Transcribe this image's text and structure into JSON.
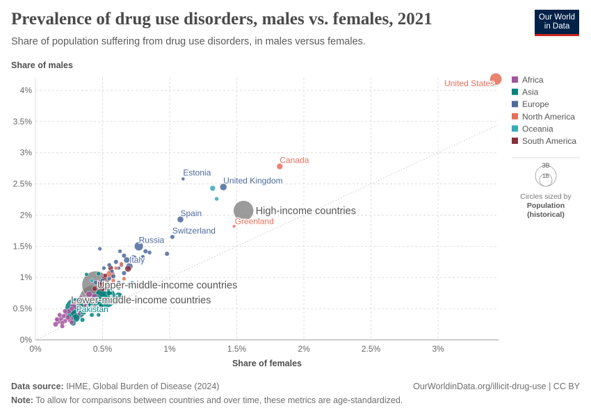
{
  "header": {
    "title": "Prevalence of drug use disorders, males vs. females, 2021",
    "subtitle": "Share of population suffering from drug use disorders, in males versus females.",
    "logo_line1": "Our World",
    "logo_line2": "in Data"
  },
  "footer": {
    "source_label": "Data source:",
    "source_text": "IHME, Global Burden of Disease (2024)",
    "url_text": "OurWorldinData.org/illicit-drug-use | CC BY",
    "note_label": "Note:",
    "note_text": "To allow for comparisons between countries and over time, these metrics are age-standardized."
  },
  "size_legend": {
    "big_label": "3B",
    "small_label": "1B",
    "caption": "Circles sized by",
    "metric_line1": "Population",
    "metric_line2": "(historical)"
  },
  "colors": {
    "Africa": "#a2559c",
    "Asia": "#00847e",
    "Europe": "#4c6a9c",
    "North America": "#e56e5a",
    "Oceania": "#38aaba",
    "South America": "#883039",
    "Aggregate": "#7a7a7a"
  },
  "chart_data": {
    "type": "scatter",
    "title": "Prevalence of drug use disorders, males vs. females, 2021",
    "xlabel": "Share of females",
    "ylabel": "Share of males",
    "xlim": [
      0,
      3.45
    ],
    "ylim": [
      0,
      4.2
    ],
    "xticks": [
      0,
      0.5,
      1,
      1.5,
      2,
      2.5,
      3
    ],
    "xtick_labels": [
      "0%",
      "0.5%",
      "1%",
      "1.5%",
      "2%",
      "2.5%",
      "3%"
    ],
    "yticks": [
      0,
      0.5,
      1,
      1.5,
      2,
      2.5,
      3,
      3.5,
      4
    ],
    "ytick_labels": [
      "0%",
      "0.5%",
      "1%",
      "1.5%",
      "2%",
      "2.5%",
      "3%",
      "3.5%",
      "4%"
    ],
    "grid": true,
    "diagonal_reference": true,
    "legend_position": "right",
    "legend": [
      "Africa",
      "Asia",
      "Europe",
      "North America",
      "Oceania",
      "South America"
    ],
    "labeled_points": [
      {
        "name": "United States",
        "x": 3.43,
        "y": 4.18,
        "region": "North America",
        "pop": 0.34
      },
      {
        "name": "Canada",
        "x": 1.82,
        "y": 2.78,
        "region": "North America",
        "pop": 0.04
      },
      {
        "name": "Estonia",
        "x": 1.1,
        "y": 2.58,
        "region": "Europe",
        "pop": 0.001
      },
      {
        "name": "United Kingdom",
        "x": 1.4,
        "y": 2.45,
        "region": "Europe",
        "pop": 0.067
      },
      {
        "name": "High-income countries",
        "x": 1.55,
        "y": 2.07,
        "region": "Aggregate",
        "pop": 1.25
      },
      {
        "name": "Spain",
        "x": 1.08,
        "y": 1.93,
        "region": "Europe",
        "pop": 0.047
      },
      {
        "name": "Greenland",
        "x": 1.48,
        "y": 1.82,
        "region": "North America",
        "pop": 0.0001
      },
      {
        "name": "Switzerland",
        "x": 1.02,
        "y": 1.65,
        "region": "Europe",
        "pop": 0.009
      },
      {
        "name": "Russia",
        "x": 0.77,
        "y": 1.5,
        "region": "Europe",
        "pop": 0.145
      },
      {
        "name": "Italy",
        "x": 0.7,
        "y": 1.18,
        "region": "Europe",
        "pop": 0.059
      },
      {
        "name": "Upper-middle-income countries",
        "x": 0.45,
        "y": 0.88,
        "region": "Aggregate",
        "pop": 2.8
      },
      {
        "name": "Lower-middle-income countries",
        "x": 0.43,
        "y": 0.65,
        "region": "Aggregate",
        "pop": 3.4
      },
      {
        "name": "Pakistan",
        "x": 0.32,
        "y": 0.47,
        "region": "Asia",
        "pop": 0.23
      }
    ],
    "points": [
      {
        "x": 1.32,
        "y": 2.43,
        "region": "Oceania",
        "pop": 0.026
      },
      {
        "x": 1.35,
        "y": 2.26,
        "region": "Oceania",
        "pop": 0.005
      },
      {
        "x": 0.98,
        "y": 1.38,
        "region": "Europe",
        "pop": 0.01
      },
      {
        "x": 0.82,
        "y": 1.42,
        "region": "Europe",
        "pop": 0.01
      },
      {
        "x": 0.85,
        "y": 1.4,
        "region": "Europe",
        "pop": 0.005
      },
      {
        "x": 0.63,
        "y": 1.42,
        "region": "Europe",
        "pop": 0.004
      },
      {
        "x": 0.66,
        "y": 1.35,
        "region": "Europe",
        "pop": 0.01
      },
      {
        "x": 0.73,
        "y": 1.3,
        "region": "Europe",
        "pop": 0.083
      },
      {
        "x": 0.68,
        "y": 1.28,
        "region": "Europe",
        "pop": 0.038
      },
      {
        "x": 0.48,
        "y": 1.46,
        "region": "Europe",
        "pop": 0.003
      },
      {
        "x": 0.8,
        "y": 1.33,
        "region": "Europe",
        "pop": 0.005
      },
      {
        "x": 0.6,
        "y": 1.25,
        "region": "Europe",
        "pop": 0.01
      },
      {
        "x": 0.55,
        "y": 1.2,
        "region": "Europe",
        "pop": 0.006
      },
      {
        "x": 0.62,
        "y": 1.15,
        "region": "Europe",
        "pop": 0.002
      },
      {
        "x": 0.51,
        "y": 1.15,
        "region": "Europe",
        "pop": 0.004
      },
      {
        "x": 0.58,
        "y": 1.02,
        "region": "Europe",
        "pop": 0.01
      },
      {
        "x": 0.55,
        "y": 0.98,
        "region": "Europe",
        "pop": 0.005
      },
      {
        "x": 0.5,
        "y": 0.95,
        "region": "Europe",
        "pop": 0.01
      },
      {
        "x": 0.45,
        "y": 0.92,
        "region": "Europe",
        "pop": 0.006
      },
      {
        "x": 0.62,
        "y": 0.92,
        "region": "Europe",
        "pop": 0.003
      },
      {
        "x": 0.7,
        "y": 0.9,
        "region": "Europe",
        "pop": 0.003
      },
      {
        "x": 0.57,
        "y": 1.1,
        "region": "Europe",
        "pop": 0.004
      },
      {
        "x": 0.66,
        "y": 1.07,
        "region": "Europe",
        "pop": 0.01
      },
      {
        "x": 0.69,
        "y": 1.14,
        "region": "South America",
        "pop": 0.046
      },
      {
        "x": 0.56,
        "y": 1.15,
        "region": "South America",
        "pop": 0.02
      },
      {
        "x": 0.64,
        "y": 1.2,
        "region": "South America",
        "pop": 0.003
      },
      {
        "x": 0.51,
        "y": 0.98,
        "region": "South America",
        "pop": 0.012
      },
      {
        "x": 0.48,
        "y": 0.92,
        "region": "South America",
        "pop": 0.034
      },
      {
        "x": 0.5,
        "y": 0.86,
        "region": "South America",
        "pop": 0.215
      },
      {
        "x": 0.44,
        "y": 0.82,
        "region": "South America",
        "pop": 0.018
      },
      {
        "x": 0.52,
        "y": 1.03,
        "region": "South America",
        "pop": 0.008
      },
      {
        "x": 0.6,
        "y": 1.15,
        "region": "North America",
        "pop": 0.002
      },
      {
        "x": 0.56,
        "y": 1.05,
        "region": "North America",
        "pop": 0.128
      },
      {
        "x": 0.52,
        "y": 0.9,
        "region": "North America",
        "pop": 0.005
      },
      {
        "x": 0.64,
        "y": 1.22,
        "region": "North America",
        "pop": 0.003
      },
      {
        "x": 0.58,
        "y": 0.95,
        "region": "North America",
        "pop": 0.005
      },
      {
        "x": 0.66,
        "y": 0.98,
        "region": "North America",
        "pop": 0.004
      },
      {
        "x": 0.55,
        "y": 0.85,
        "region": "North America",
        "pop": 0.003
      },
      {
        "x": 0.42,
        "y": 0.95,
        "region": "Oceania",
        "pop": 0.003
      },
      {
        "x": 0.72,
        "y": 0.92,
        "region": "Oceania",
        "pop": 0.001
      },
      {
        "x": 0.6,
        "y": 0.6,
        "region": "Oceania",
        "pop": 0.01
      },
      {
        "x": 0.38,
        "y": 1.05,
        "region": "Asia",
        "pop": 0.002
      },
      {
        "x": 0.47,
        "y": 1.06,
        "region": "Asia",
        "pop": 0.005
      },
      {
        "x": 0.7,
        "y": 0.88,
        "region": "Asia",
        "pop": 0.02
      },
      {
        "x": 0.62,
        "y": 0.83,
        "region": "Asia",
        "pop": 0.006
      },
      {
        "x": 0.55,
        "y": 0.75,
        "region": "Asia",
        "pop": 0.034
      },
      {
        "x": 0.52,
        "y": 0.68,
        "region": "Asia",
        "pop": 1.41
      },
      {
        "x": 0.45,
        "y": 0.64,
        "region": "Asia",
        "pop": 0.278
      },
      {
        "x": 0.38,
        "y": 0.6,
        "region": "Asia",
        "pop": 0.2
      },
      {
        "x": 0.33,
        "y": 0.55,
        "region": "Asia",
        "pop": 0.07
      },
      {
        "x": 0.3,
        "y": 0.5,
        "region": "Asia",
        "pop": 1.41
      },
      {
        "x": 0.28,
        "y": 0.43,
        "region": "Asia",
        "pop": 0.17
      },
      {
        "x": 0.3,
        "y": 0.35,
        "region": "Asia",
        "pop": 0.11
      },
      {
        "x": 0.28,
        "y": 0.27,
        "region": "Asia",
        "pop": 0.03
      },
      {
        "x": 0.35,
        "y": 0.32,
        "region": "Asia",
        "pop": 0.01
      },
      {
        "x": 0.42,
        "y": 0.4,
        "region": "Asia",
        "pop": 0.008
      },
      {
        "x": 0.47,
        "y": 0.4,
        "region": "Asia",
        "pop": 0.004
      },
      {
        "x": 0.36,
        "y": 0.45,
        "region": "Asia",
        "pop": 0.03
      },
      {
        "x": 0.62,
        "y": 0.7,
        "region": "Asia",
        "pop": 0.1
      },
      {
        "x": 0.57,
        "y": 0.62,
        "region": "Asia",
        "pop": 0.05
      },
      {
        "x": 0.49,
        "y": 0.55,
        "region": "Asia",
        "pop": 0.02
      },
      {
        "x": 0.41,
        "y": 0.57,
        "region": "Asia",
        "pop": 0.05
      },
      {
        "x": 0.35,
        "y": 0.65,
        "region": "Asia",
        "pop": 0.01
      },
      {
        "x": 0.25,
        "y": 0.38,
        "region": "Asia",
        "pop": 0.02
      },
      {
        "x": 0.15,
        "y": 0.25,
        "region": "Africa",
        "pop": 0.02
      },
      {
        "x": 0.17,
        "y": 0.3,
        "region": "Africa",
        "pop": 0.03
      },
      {
        "x": 0.19,
        "y": 0.34,
        "region": "Africa",
        "pop": 0.02
      },
      {
        "x": 0.21,
        "y": 0.38,
        "region": "Africa",
        "pop": 0.01
      },
      {
        "x": 0.23,
        "y": 0.42,
        "region": "Africa",
        "pop": 0.03
      },
      {
        "x": 0.25,
        "y": 0.46,
        "region": "Africa",
        "pop": 0.02
      },
      {
        "x": 0.27,
        "y": 0.5,
        "region": "Africa",
        "pop": 0.01
      },
      {
        "x": 0.22,
        "y": 0.3,
        "region": "Africa",
        "pop": 0.01
      },
      {
        "x": 0.24,
        "y": 0.36,
        "region": "Africa",
        "pop": 0.02
      },
      {
        "x": 0.2,
        "y": 0.27,
        "region": "Africa",
        "pop": 0.01
      },
      {
        "x": 0.29,
        "y": 0.55,
        "region": "Africa",
        "pop": 0.12
      },
      {
        "x": 0.31,
        "y": 0.6,
        "region": "Africa",
        "pop": 0.02
      },
      {
        "x": 0.34,
        "y": 0.68,
        "region": "Africa",
        "pop": 0.01
      },
      {
        "x": 0.3,
        "y": 0.4,
        "region": "Africa",
        "pop": 0.22
      },
      {
        "x": 0.26,
        "y": 0.33,
        "region": "Africa",
        "pop": 0.05
      },
      {
        "x": 0.18,
        "y": 0.4,
        "region": "Africa",
        "pop": 0.01
      },
      {
        "x": 0.16,
        "y": 0.33,
        "region": "Africa",
        "pop": 0.01
      },
      {
        "x": 0.37,
        "y": 0.52,
        "region": "Africa",
        "pop": 0.1
      },
      {
        "x": 0.22,
        "y": 0.46,
        "region": "Africa",
        "pop": 0.01
      },
      {
        "x": 0.27,
        "y": 0.28,
        "region": "Africa",
        "pop": 0.01
      },
      {
        "x": 0.4,
        "y": 0.73,
        "region": "Africa",
        "pop": 0.045
      },
      {
        "x": 0.44,
        "y": 0.7,
        "region": "Africa",
        "pop": 0.03
      },
      {
        "x": 0.2,
        "y": 0.22,
        "region": "Africa",
        "pop": 0.01
      }
    ]
  }
}
